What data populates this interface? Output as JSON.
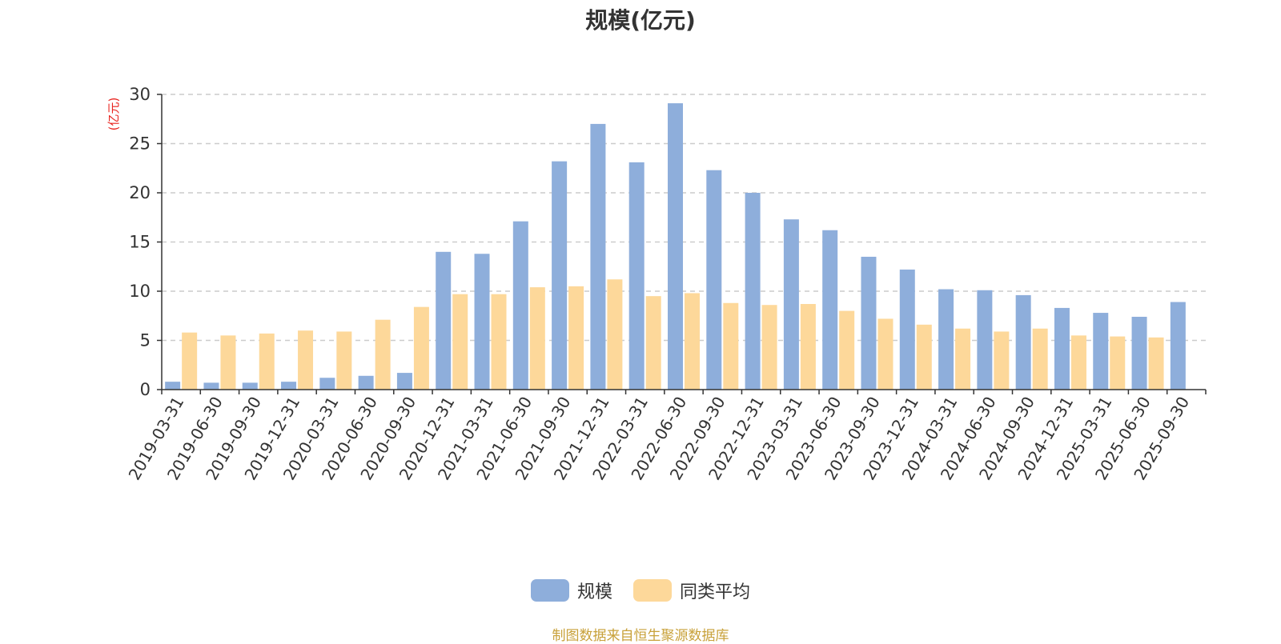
{
  "chart_data": {
    "type": "bar",
    "title": "规模(亿元)",
    "ylabel": "(亿元)",
    "xlabel": "",
    "ylim": [
      0,
      30
    ],
    "yticks": [
      0,
      5,
      10,
      15,
      20,
      25,
      30
    ],
    "grid": true,
    "legend_position": "bottom",
    "categories": [
      "2019-03-31",
      "2019-06-30",
      "2019-09-30",
      "2019-12-31",
      "2020-03-31",
      "2020-06-30",
      "2020-09-30",
      "2020-12-31",
      "2021-03-31",
      "2021-06-30",
      "2021-09-30",
      "2021-12-31",
      "2022-03-31",
      "2022-06-30",
      "2022-09-30",
      "2022-12-31",
      "2023-03-31",
      "2023-06-30",
      "2023-09-30",
      "2023-12-31",
      "2024-03-31",
      "2024-06-30",
      "2024-09-30",
      "2024-12-31",
      "2025-03-31",
      "2025-06-30",
      "2025-09-30"
    ],
    "series": [
      {
        "name": "规模",
        "color": "#8eaedb",
        "values": [
          0.8,
          0.7,
          0.7,
          0.8,
          1.2,
          1.4,
          1.7,
          14.0,
          13.8,
          17.1,
          23.2,
          27.0,
          23.1,
          29.1,
          22.3,
          20.0,
          17.3,
          16.2,
          13.5,
          12.2,
          10.2,
          10.1,
          9.6,
          8.3,
          7.8,
          7.4,
          8.9
        ]
      },
      {
        "name": "同类平均",
        "color": "#fdd89a",
        "values": [
          5.8,
          5.5,
          5.7,
          6.0,
          5.9,
          7.1,
          8.4,
          9.7,
          9.7,
          10.4,
          10.5,
          11.2,
          9.5,
          9.8,
          8.8,
          8.6,
          8.7,
          8.0,
          7.2,
          6.6,
          6.2,
          5.9,
          6.2,
          5.5,
          5.4,
          5.3,
          null
        ]
      }
    ],
    "source": "制图数据来自恒生聚源数据库"
  }
}
